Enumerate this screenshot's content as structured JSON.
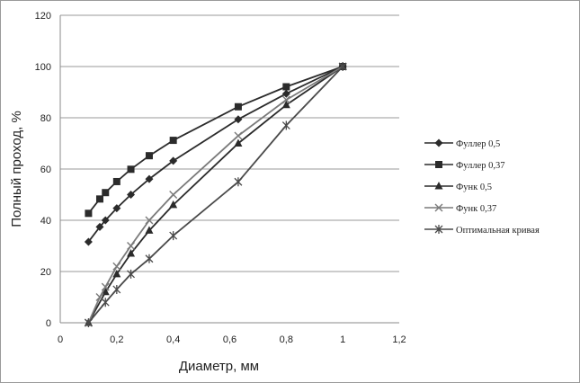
{
  "chart_data": {
    "type": "line",
    "title": "",
    "xlabel": "Диаметр, мм",
    "ylabel": "Полный проход, %",
    "xlim": [
      0,
      1.2
    ],
    "ylim": [
      0,
      120
    ],
    "x_ticks": [
      "0",
      "0,2",
      "0,4",
      "0,6",
      "0,8",
      "1",
      "1,2"
    ],
    "y_ticks": [
      "0",
      "20",
      "40",
      "60",
      "80",
      "100",
      "120"
    ],
    "grid": "horizontal",
    "legend_position": "right",
    "series": [
      {
        "name": "Фуллер 0,5",
        "marker": "diamond",
        "color": "#2b2b2b",
        "x": [
          0.1,
          0.14,
          0.16,
          0.2,
          0.25,
          0.315,
          0.4,
          0.63,
          0.8,
          1
        ],
        "y": [
          31.6,
          37.4,
          40,
          44.7,
          50,
          56.1,
          63.2,
          79.4,
          89.4,
          100
        ]
      },
      {
        "name": "Фуллер 0,37",
        "marker": "square",
        "color": "#2b2b2b",
        "x": [
          0.1,
          0.14,
          0.16,
          0.2,
          0.25,
          0.315,
          0.4,
          0.63,
          0.8,
          1
        ],
        "y": [
          42.7,
          48.3,
          50.8,
          55.1,
          59.9,
          65.2,
          71.2,
          84.3,
          92.1,
          100
        ]
      },
      {
        "name": "Функ 0,5",
        "marker": "triangle",
        "color": "#2b2b2b",
        "x": [
          0.1,
          0.16,
          0.2,
          0.25,
          0.315,
          0.4,
          0.63,
          0.8,
          1
        ],
        "y": [
          0,
          12,
          19,
          27,
          36,
          46,
          70,
          85,
          100
        ]
      },
      {
        "name": "Функ 0,37",
        "marker": "x",
        "color": "#7a7a7a",
        "x": [
          0.1,
          0.14,
          0.16,
          0.2,
          0.25,
          0.315,
          0.4,
          0.63,
          0.8,
          1
        ],
        "y": [
          0,
          10,
          14,
          22,
          30,
          40,
          50,
          73,
          87,
          100
        ]
      },
      {
        "name": "Оптимальная кривая",
        "marker": "star",
        "color": "#4a4a4a",
        "x": [
          0.1,
          0.16,
          0.2,
          0.25,
          0.315,
          0.4,
          0.63,
          0.8,
          1
        ],
        "y": [
          0,
          8,
          13,
          19,
          25,
          34,
          55,
          77,
          100
        ]
      }
    ]
  }
}
